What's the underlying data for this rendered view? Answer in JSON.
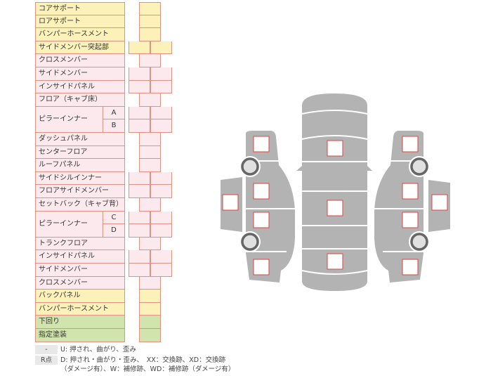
{
  "rows": [
    {
      "label": "コアサポート",
      "color": "yellow",
      "cells": 1
    },
    {
      "label": "ロアサポート",
      "color": "yellow",
      "cells": 1
    },
    {
      "label": "バンパーホースメント",
      "color": "yellow",
      "cells": 1
    },
    {
      "label": "サイドメンバー突起部",
      "color": "yellow",
      "cells": 2
    },
    {
      "label": "クロスメンバー",
      "color": "pink",
      "cells": 1
    },
    {
      "label": "サイドメンバー",
      "color": "pink",
      "cells": 2
    },
    {
      "label": "インサイドパネル",
      "color": "pink",
      "cells": 2
    },
    {
      "label": "フロア（キャブ床）",
      "color": "pink",
      "cells": 1
    },
    {
      "label": "ピラーインナー",
      "sub": "A",
      "color": "pink",
      "cells": 2
    },
    {
      "label": "",
      "sub": "B",
      "color": "pink",
      "cells": 2
    },
    {
      "label": "ダッシュパネル",
      "color": "pink",
      "cells": 1
    },
    {
      "label": "センターフロア",
      "color": "pink",
      "cells": 1
    },
    {
      "label": "ルーフパネル",
      "color": "pink",
      "cells": 1
    },
    {
      "label": "サイドシルインナー",
      "color": "pink",
      "cells": 2
    },
    {
      "label": "フロアサイドメンバー",
      "color": "pink",
      "cells": 2
    },
    {
      "label": "セットバック（キャブ背）",
      "color": "pink",
      "cells": 1
    },
    {
      "label": "ピラーインナー",
      "sub": "C",
      "color": "pink",
      "cells": 2
    },
    {
      "label": "",
      "sub": "D",
      "color": "pink",
      "cells": 2
    },
    {
      "label": "トランクフロア",
      "color": "pink",
      "cells": 1
    },
    {
      "label": "インサイドパネル",
      "color": "pink",
      "cells": 2
    },
    {
      "label": "サイドメンバー",
      "color": "pink",
      "cells": 2
    },
    {
      "label": "クロスメンバー",
      "color": "pink",
      "cells": 1
    },
    {
      "label": "バックパネル",
      "color": "yellow",
      "cells": 1
    },
    {
      "label": "バンパーホースメント",
      "color": "yellow",
      "cells": 1
    },
    {
      "label": "下回り",
      "color": "green",
      "cells": 1
    },
    {
      "label": "指定塗装",
      "color": "green",
      "cells": 1
    }
  ],
  "legend": {
    "key1": "-",
    "text1": "U: 押され、曲がり、歪み",
    "key2": "R点",
    "text2a": "D: 押され・曲がり・歪み、　XX：交換跡、XD：交換跡",
    "text2b": "（ダメージ有）、W：補修跡、WD：補修跡（ダメージ有）"
  },
  "colors": {
    "yellow": "#fbf1b9",
    "pink": "#fce9ed",
    "green": "#d2e4ae",
    "border": "#e0917f",
    "car": "#b3b3b3",
    "marker": "#d9473f"
  }
}
